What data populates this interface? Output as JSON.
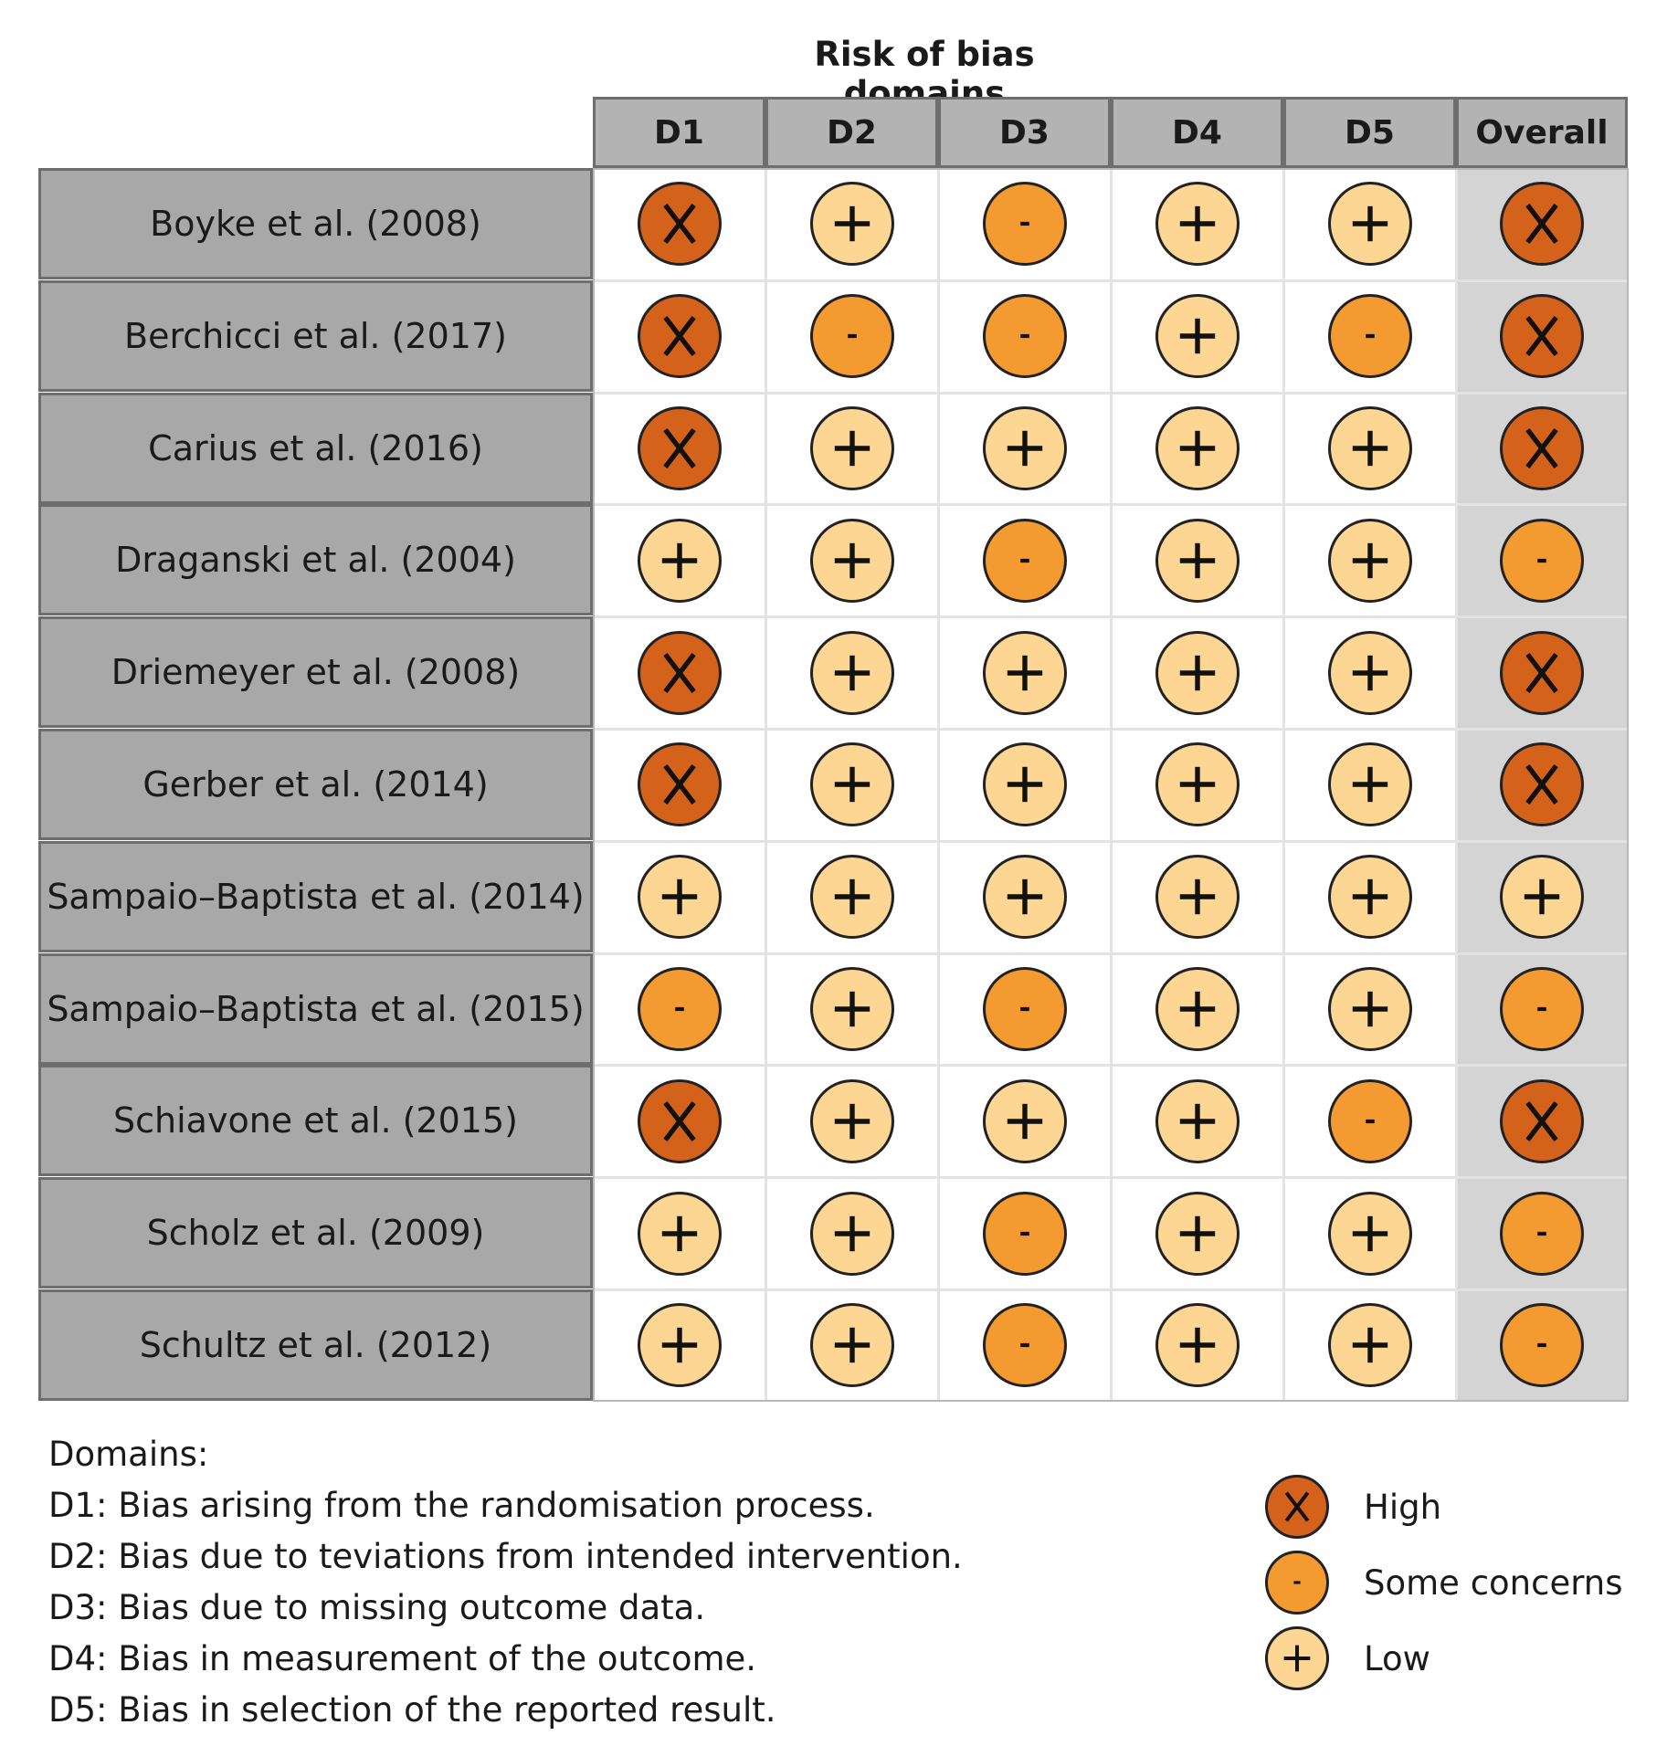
{
  "chart_data": {
    "type": "table",
    "title": "Risk of bias domains",
    "columns": [
      "D1",
      "D2",
      "D3",
      "D4",
      "D5",
      "Overall"
    ],
    "studies": [
      {
        "name": "Boyke et al. (2008)",
        "ratings": [
          "high",
          "low",
          "some",
          "low",
          "low",
          "high"
        ]
      },
      {
        "name": "Berchicci et al. (2017)",
        "ratings": [
          "high",
          "some",
          "some",
          "low",
          "some",
          "high"
        ]
      },
      {
        "name": "Carius et al. (2016)",
        "ratings": [
          "high",
          "low",
          "low",
          "low",
          "low",
          "high"
        ]
      },
      {
        "name": "Draganski et al. (2004)",
        "ratings": [
          "low",
          "low",
          "some",
          "low",
          "low",
          "some"
        ]
      },
      {
        "name": "Driemeyer et al. (2008)",
        "ratings": [
          "high",
          "low",
          "low",
          "low",
          "low",
          "high"
        ]
      },
      {
        "name": "Gerber et al. (2014)",
        "ratings": [
          "high",
          "low",
          "low",
          "low",
          "low",
          "high"
        ]
      },
      {
        "name": "Sampaio–Baptista et al. (2014)",
        "ratings": [
          "low",
          "low",
          "low",
          "low",
          "low",
          "low"
        ]
      },
      {
        "name": "Sampaio–Baptista et al. (2015)",
        "ratings": [
          "some",
          "low",
          "some",
          "low",
          "low",
          "some"
        ]
      },
      {
        "name": "Schiavone et al. (2015)",
        "ratings": [
          "high",
          "low",
          "low",
          "low",
          "some",
          "high"
        ]
      },
      {
        "name": "Scholz et al. (2009)",
        "ratings": [
          "low",
          "low",
          "some",
          "low",
          "low",
          "some"
        ]
      },
      {
        "name": "Schultz et al. (2012)",
        "ratings": [
          "low",
          "low",
          "some",
          "low",
          "low",
          "some"
        ]
      }
    ],
    "rating_styles": {
      "high": {
        "symbol": "X",
        "color": "#d5621a"
      },
      "some": {
        "symbol": "-",
        "color": "#f39a30"
      },
      "low": {
        "symbol": "+",
        "color": "#fdd694"
      }
    }
  },
  "legend": {
    "domains_heading": "Domains:",
    "domain_descriptions": [
      "D1: Bias arising from the randomisation process.",
      "D2: Bias due to teviations from intended intervention.",
      "D3: Bias due to missing outcome data.",
      "D4: Bias in measurement of the outcome.",
      "D5: Bias in selection of the reported result."
    ],
    "keys": [
      {
        "rating": "high",
        "label": "High"
      },
      {
        "rating": "some",
        "label": "Some concerns"
      },
      {
        "rating": "low",
        "label": "Low"
      }
    ]
  }
}
